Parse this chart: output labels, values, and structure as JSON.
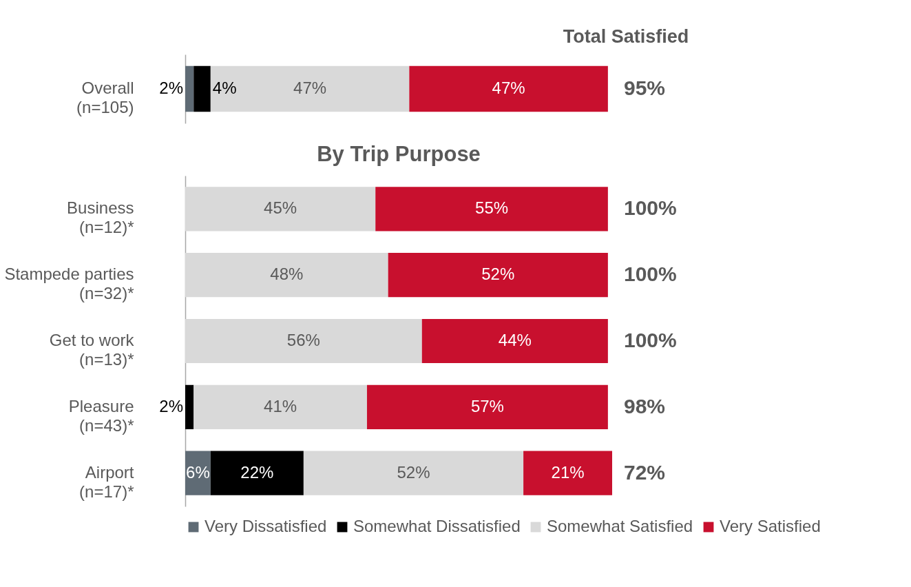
{
  "chart_data": [
    {
      "type": "bar",
      "orientation": "horizontal",
      "stacked": true,
      "categories": [
        "Overall\n(n=105)"
      ],
      "legend": "bottom",
      "annotations": [
        "Total Satisfied",
        "95%"
      ],
      "series": [
        {
          "name": "Very Dissatisfied",
          "color": "#5f6b75",
          "values": [
            2
          ],
          "value_labels": [
            "2%"
          ]
        },
        {
          "name": "Somewhat Dissatisfied",
          "color": "#000000",
          "values": [
            4
          ],
          "value_labels": [
            "4%"
          ]
        },
        {
          "name": "Somewhat Satisfied",
          "color": "#d9d9d9",
          "values": [
            47
          ],
          "value_labels": [
            "47%"
          ]
        },
        {
          "name": "Very Satisfied",
          "color": "#c8102e",
          "values": [
            47
          ],
          "value_labels": [
            "47%"
          ]
        }
      ]
    },
    {
      "type": "bar",
      "orientation": "horizontal",
      "stacked": true,
      "title": "By Trip Purpose",
      "categories": [
        "Business\n(n=12)*",
        "Stampede parties\n(n=32)*",
        "Get to work\n(n=13)*",
        "Pleasure\n(n=43)*",
        "Airport\n(n=17)*"
      ],
      "legend": "bottom",
      "annotations": [
        "100%",
        "100%",
        "100%",
        "98%",
        "72%"
      ],
      "series": [
        {
          "name": "Very Dissatisfied",
          "color": "#5f6b75",
          "values": [
            0,
            0,
            0,
            0,
            6
          ],
          "value_labels": [
            null,
            null,
            null,
            null,
            "6%"
          ]
        },
        {
          "name": "Somewhat Dissatisfied",
          "color": "#000000",
          "values": [
            0,
            0,
            0,
            2,
            22
          ],
          "value_labels": [
            null,
            null,
            null,
            "2%",
            "22%"
          ]
        },
        {
          "name": "Somewhat Satisfied",
          "color": "#d9d9d9",
          "values": [
            45,
            48,
            56,
            41,
            52
          ],
          "value_labels": [
            "45%",
            "48%",
            "56%",
            "41%",
            "52%"
          ]
        },
        {
          "name": "Very Satisfied",
          "color": "#c8102e",
          "values": [
            55,
            52,
            44,
            57,
            21
          ],
          "value_labels": [
            "55%",
            "52%",
            "44%",
            "57%",
            "21%"
          ]
        }
      ]
    }
  ]
}
